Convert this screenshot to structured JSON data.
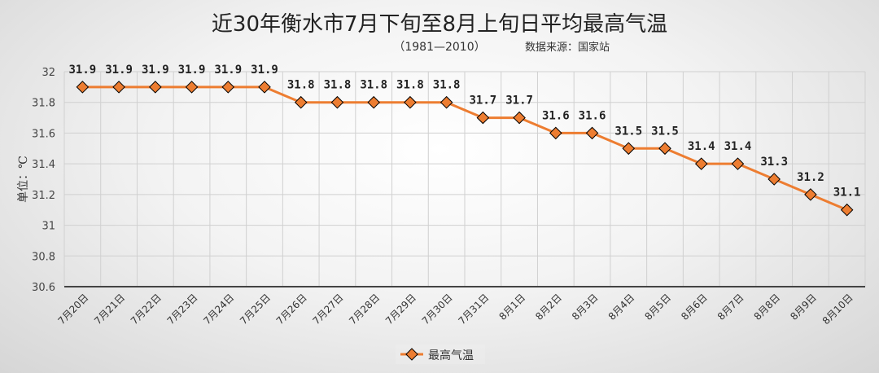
{
  "chart_data": {
    "type": "line",
    "title": "近30年衡水市7月下旬至8月上旬日平均最高气温",
    "subtitle": "（1981—2010）",
    "source": "数据来源：国家站",
    "ylabel": "单位：℃",
    "xlabel": "",
    "ylim": [
      30.6,
      32
    ],
    "yticks": [
      "30.6",
      "30.8",
      "31",
      "31.2",
      "31.4",
      "31.6",
      "31.8",
      "32"
    ],
    "grid": true,
    "legend_position": "bottom-right",
    "categories": [
      "7月20日",
      "7月21日",
      "7月22日",
      "7月23日",
      "7月24日",
      "7月25日",
      "7月26日",
      "7月27日",
      "7月28日",
      "7月29日",
      "7月30日",
      "7月31日",
      "8月1日",
      "8月2日",
      "8月3日",
      "8月4日",
      "8月5日",
      "8月6日",
      "8月7日",
      "8月8日",
      "8月9日",
      "8月10日"
    ],
    "series": [
      {
        "name": "最高气温",
        "color": "#ed7d31",
        "values": [
          31.9,
          31.9,
          31.9,
          31.9,
          31.9,
          31.9,
          31.8,
          31.8,
          31.8,
          31.8,
          31.8,
          31.7,
          31.7,
          31.6,
          31.6,
          31.5,
          31.5,
          31.4,
          31.4,
          31.3,
          31.2,
          31.1
        ],
        "labels": [
          "31.9",
          "31.9",
          "31.9",
          "31.9",
          "31.9",
          "31.9",
          "31.8",
          "31.8",
          "31.8",
          "31.8",
          "31.8",
          "31.7",
          "31.7",
          "31.6",
          "31.6",
          "31.5",
          "31.5",
          "31.4",
          "31.4",
          "31.3",
          "31.2",
          "31.1"
        ]
      }
    ]
  }
}
